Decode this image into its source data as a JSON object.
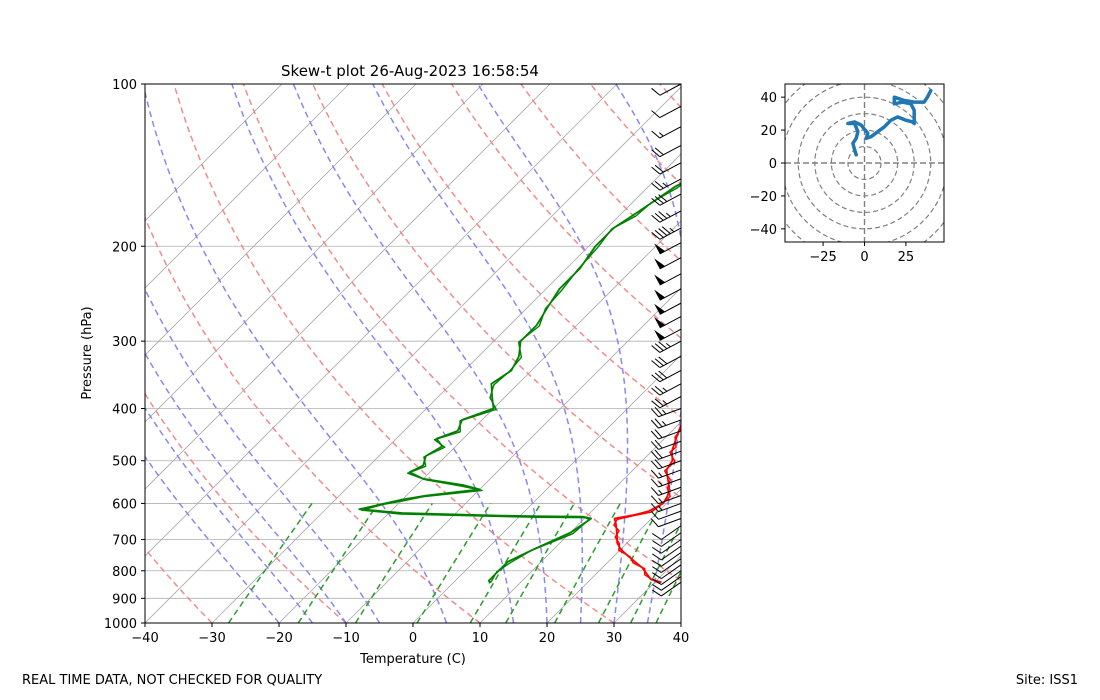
{
  "footer": {
    "left": "REAL TIME DATA, NOT CHECKED FOR QUALITY",
    "right": "Site: ISS1"
  },
  "colors": {
    "temperature": "#ff0000",
    "dewpoint": "#008000",
    "dry_adiabat": "#f08080",
    "moist_adiabat": "#7b7bf0",
    "mixing_ratio": "#2a9d2a",
    "isotherm": "#a9a9a9",
    "hodograph": "#1f77b4"
  },
  "chart_data": [
    {
      "type": "line",
      "title": "Skew-t plot 26-Aug-2023 16:58:54",
      "xlabel": "Temperature (C)",
      "ylabel": "Pressure (hPa)",
      "xlim": [
        -40,
        40
      ],
      "ylim": [
        1000,
        100
      ],
      "y_scale": "log",
      "x_ticks": [
        "−40",
        "−30",
        "−20",
        "−10",
        "0",
        "10",
        "20",
        "30",
        "40"
      ],
      "y_ticks": [
        "100",
        "200",
        "300",
        "400",
        "500",
        "600",
        "700",
        "800",
        "900",
        "1000"
      ],
      "grid": true,
      "series": [
        {
          "role": "temperature",
          "points": [
            [
              31,
              840
            ],
            [
              29,
              830
            ],
            [
              27.5,
              810
            ],
            [
              26,
              790
            ],
            [
              24,
              770
            ],
            [
              22,
              750
            ],
            [
              20,
              730
            ],
            [
              18.5,
              710
            ],
            [
              17.5,
              690
            ],
            [
              16.5,
              672
            ],
            [
              15.5,
              655
            ],
            [
              14.5,
              640
            ],
            [
              17,
              630
            ],
            [
              18.5,
              620
            ],
            [
              19.5,
              600
            ],
            [
              19,
              580
            ],
            [
              18,
              560
            ],
            [
              16.5,
              540
            ],
            [
              15,
              520
            ],
            [
              14.5,
              500
            ],
            [
              13,
              480
            ],
            [
              12.5,
              470
            ],
            [
              11.5,
              450
            ],
            [
              10.5,
              430
            ],
            [
              9.5,
              400
            ],
            [
              7.5,
              380
            ],
            [
              5.5,
              360
            ],
            [
              3.5,
              340
            ],
            [
              2,
              320
            ],
            [
              0.5,
              300
            ],
            [
              0,
              280
            ],
            [
              -0.5,
              260
            ],
            [
              -1,
              240
            ],
            [
              -2,
              220
            ],
            [
              -3,
              200
            ],
            [
              -4,
              185
            ],
            [
              -4.5,
              170
            ],
            [
              -5,
              160
            ],
            [
              -5.5,
              150
            ],
            [
              -6.5,
              140
            ],
            [
              -7,
              130
            ],
            [
              -8,
              120
            ],
            [
              -9,
              110
            ],
            [
              -9.5,
              105
            ],
            [
              -9,
              101
            ]
          ]
        },
        {
          "role": "dewpoint",
          "points": [
            [
              5.5,
              840
            ],
            [
              5,
              835
            ],
            [
              5,
              800
            ],
            [
              5,
              770
            ],
            [
              7,
              730
            ],
            [
              10,
              680
            ],
            [
              11,
              640
            ],
            [
              9.5,
              635
            ],
            [
              3,
              634
            ],
            [
              -3,
              632
            ],
            [
              -18,
              625
            ],
            [
              -25,
              615
            ],
            [
              -22,
              600
            ],
            [
              -20,
              590
            ],
            [
              -17,
              580
            ],
            [
              -10,
              565
            ],
            [
              -13,
              555
            ],
            [
              -20,
              540
            ],
            [
              -23,
              525
            ],
            [
              -22,
              510
            ],
            [
              -23,
              490
            ],
            [
              -22,
              470
            ],
            [
              -24,
              455
            ],
            [
              -22,
              440
            ],
            [
              -23,
              420
            ],
            [
              -20,
              400
            ],
            [
              -22,
              380
            ],
            [
              -24,
              360
            ],
            [
              -23,
              340
            ],
            [
              -24,
              320
            ],
            [
              -26,
              300
            ],
            [
              -26,
              280
            ],
            [
              -27,
              260
            ],
            [
              -28,
              240
            ],
            [
              -28,
              220
            ],
            [
              -29,
              200
            ],
            [
              -29,
              185
            ],
            [
              -28,
              175
            ],
            [
              -27,
              165
            ],
            [
              -26,
              155
            ],
            [
              -25,
              150
            ],
            [
              -24,
              142
            ],
            [
              -24,
              135
            ],
            [
              -22,
              128
            ],
            [
              -21,
              120
            ],
            [
              -19,
              112
            ],
            [
              -18,
              106
            ],
            [
              -17,
              101
            ]
          ]
        }
      ],
      "wind_barbs": {
        "pressures": [
          840,
          820,
          800,
          780,
          760,
          740,
          720,
          700,
          680,
          660,
          640,
          620,
          600,
          580,
          560,
          540,
          520,
          500,
          480,
          460,
          440,
          420,
          400,
          380,
          360,
          340,
          320,
          300,
          285,
          270,
          255,
          240,
          225,
          210,
          197,
          185,
          172,
          160,
          150,
          140,
          130,
          120,
          110,
          100
        ],
        "speeds": [
          10,
          10,
          10,
          10,
          10,
          10,
          10,
          10,
          10,
          10,
          10,
          10,
          15,
          15,
          15,
          15,
          15,
          20,
          20,
          20,
          20,
          25,
          25,
          25,
          25,
          30,
          30,
          35,
          50,
          50,
          50,
          50,
          50,
          50,
          50,
          45,
          35,
          30,
          25,
          20,
          20,
          15,
          10,
          10
        ]
      }
    },
    {
      "type": "line",
      "title": "",
      "xlim": [
        -48,
        48
      ],
      "ylim": [
        -48,
        48
      ],
      "x_ticks": [
        "−25",
        "0",
        "25"
      ],
      "y_ticks": [
        "40",
        "20",
        "0",
        "−20",
        "−40"
      ],
      "rings": [
        10,
        20,
        30,
        40,
        50,
        60
      ],
      "series": [
        {
          "role": "hodograph",
          "points": [
            [
              -5,
              5
            ],
            [
              -6,
              8
            ],
            [
              -7,
              12
            ],
            [
              -5,
              15
            ],
            [
              -4,
              19
            ],
            [
              -6,
              24
            ],
            [
              -10,
              24
            ],
            [
              -6,
              25
            ],
            [
              -2,
              23
            ],
            [
              2,
              18
            ],
            [
              1,
              15
            ],
            [
              4,
              16
            ],
            [
              8,
              19
            ],
            [
              12,
              22
            ],
            [
              16,
              26
            ],
            [
              20,
              28
            ],
            [
              25,
              26
            ],
            [
              29,
              25
            ],
            [
              30,
              24
            ],
            [
              30,
              28
            ],
            [
              30,
              32
            ],
            [
              28,
              36
            ],
            [
              23,
              37
            ],
            [
              18,
              36
            ],
            [
              18,
              40
            ],
            [
              24,
              38
            ],
            [
              30,
              37
            ],
            [
              36,
              37
            ],
            [
              38,
              40
            ],
            [
              40,
              44
            ]
          ]
        }
      ]
    }
  ]
}
